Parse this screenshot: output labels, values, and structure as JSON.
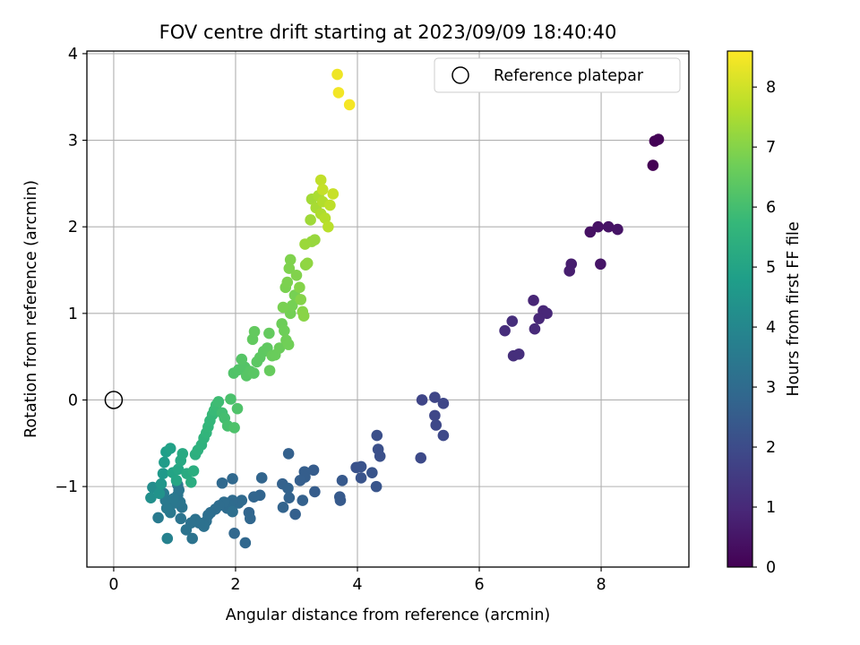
{
  "chart_data": {
    "type": "scatter",
    "title": "FOV centre drift starting at 2023/09/09 18:40:40",
    "xlabel": "Angular distance from reference (arcmin)",
    "ylabel": "Rotation from reference (arcmin)",
    "xlim": [
      -0.44,
      9.44
    ],
    "ylim": [
      -1.93,
      4.03
    ],
    "xticks": [
      0,
      2,
      4,
      6,
      8
    ],
    "yticks": [
      -1,
      0,
      1,
      2,
      3,
      4
    ],
    "grid": true,
    "legend": {
      "placement": "top-right",
      "entries": [
        "Reference platepar"
      ]
    },
    "reference_point": {
      "label": "Reference platepar",
      "x": 0,
      "y": 0
    },
    "colorbar": {
      "label": "Hours from first FF file",
      "min": 0,
      "max": 8.6,
      "ticks": [
        0,
        1,
        2,
        3,
        4,
        5,
        6,
        7,
        8
      ],
      "colormap": "viridis",
      "stops": [
        "#440154",
        "#482878",
        "#3e4989",
        "#31688e",
        "#26828e",
        "#1f9e89",
        "#35b779",
        "#6ece58",
        "#b5de2b",
        "#fde725"
      ]
    },
    "points": [
      [
        8.85,
        2.71,
        0.0
      ],
      [
        8.88,
        2.99,
        0.03
      ],
      [
        8.94,
        3.01,
        0.05
      ],
      [
        7.82,
        1.94,
        0.4
      ],
      [
        7.95,
        2.0,
        0.42
      ],
      [
        8.12,
        2.0,
        0.45
      ],
      [
        8.27,
        1.97,
        0.47
      ],
      [
        7.99,
        1.57,
        0.5
      ],
      [
        7.51,
        1.57,
        0.7
      ],
      [
        7.48,
        1.49,
        0.72
      ],
      [
        6.89,
        1.15,
        0.9
      ],
      [
        7.05,
        1.03,
        0.92
      ],
      [
        7.11,
        1.0,
        0.95
      ],
      [
        6.98,
        0.94,
        0.97
      ],
      [
        6.91,
        0.82,
        1.0
      ],
      [
        6.42,
        0.8,
        1.1
      ],
      [
        6.54,
        0.91,
        1.12
      ],
      [
        6.56,
        0.51,
        1.15
      ],
      [
        6.65,
        0.53,
        1.17
      ],
      [
        5.06,
        0.0,
        1.8
      ],
      [
        5.27,
        0.03,
        1.82
      ],
      [
        5.41,
        -0.04,
        1.84
      ],
      [
        5.27,
        -0.18,
        1.86
      ],
      [
        5.29,
        -0.29,
        1.88
      ],
      [
        5.41,
        -0.41,
        1.9
      ],
      [
        5.04,
        -0.67,
        1.95
      ],
      [
        4.32,
        -0.41,
        2.1
      ],
      [
        4.34,
        -0.57,
        2.12
      ],
      [
        4.37,
        -0.65,
        2.14
      ],
      [
        3.98,
        -0.78,
        2.2
      ],
      [
        4.06,
        -0.77,
        2.22
      ],
      [
        4.06,
        -0.9,
        2.24
      ],
      [
        4.24,
        -0.84,
        2.26
      ],
      [
        4.31,
        -1.0,
        2.28
      ],
      [
        3.75,
        -0.93,
        2.4
      ],
      [
        3.71,
        -1.12,
        2.42
      ],
      [
        3.72,
        -1.16,
        2.44
      ],
      [
        3.28,
        -0.81,
        2.5
      ],
      [
        3.3,
        -1.06,
        2.52
      ],
      [
        3.13,
        -0.83,
        2.55
      ],
      [
        3.14,
        -0.89,
        2.57
      ],
      [
        3.06,
        -0.93,
        2.6
      ],
      [
        2.98,
        -1.32,
        2.62
      ],
      [
        3.1,
        -1.16,
        2.64
      ],
      [
        2.87,
        -0.62,
        2.66
      ],
      [
        2.77,
        -0.97,
        2.68
      ],
      [
        2.86,
        -1.02,
        2.7
      ],
      [
        2.88,
        -1.13,
        2.72
      ],
      [
        2.78,
        -1.24,
        2.74
      ],
      [
        2.43,
        -0.9,
        2.76
      ],
      [
        2.4,
        -1.1,
        2.78
      ],
      [
        2.3,
        -1.12,
        2.8
      ],
      [
        2.22,
        -1.3,
        2.82
      ],
      [
        2.24,
        -1.37,
        2.84
      ],
      [
        2.16,
        -1.65,
        2.86
      ],
      [
        1.98,
        -1.54,
        2.88
      ],
      [
        1.95,
        -0.91,
        2.9
      ],
      [
        1.78,
        -0.96,
        2.92
      ],
      [
        2.1,
        -1.16,
        2.94
      ],
      [
        2.05,
        -1.19,
        2.96
      ],
      [
        1.95,
        -1.16,
        2.98
      ],
      [
        1.9,
        -1.22,
        3.0
      ],
      [
        1.86,
        -1.25,
        3.02
      ],
      [
        1.81,
        -1.18,
        3.04
      ],
      [
        1.73,
        -1.22,
        3.06
      ],
      [
        1.67,
        -1.26,
        3.08
      ],
      [
        1.59,
        -1.3,
        3.1
      ],
      [
        1.55,
        -1.33,
        3.12
      ],
      [
        1.95,
        -1.29,
        3.14
      ],
      [
        1.52,
        -1.4,
        3.16
      ],
      [
        1.48,
        -1.46,
        3.18
      ],
      [
        1.4,
        -1.42,
        3.2
      ],
      [
        1.34,
        -1.38,
        3.22
      ],
      [
        1.27,
        -1.42,
        3.24
      ],
      [
        1.29,
        -1.6,
        3.26
      ],
      [
        1.19,
        -1.5,
        3.28
      ],
      [
        1.1,
        -1.37,
        3.3
      ],
      [
        1.12,
        -1.24,
        3.32
      ],
      [
        1.09,
        -1.18,
        3.34
      ],
      [
        1.05,
        -1.1,
        3.36
      ],
      [
        1.07,
        -1.04,
        3.38
      ],
      [
        1.05,
        -0.98,
        3.4
      ],
      [
        1.0,
        -1.19,
        3.42
      ],
      [
        0.98,
        -1.14,
        3.44
      ],
      [
        0.93,
        -1.3,
        3.46
      ],
      [
        0.87,
        -1.25,
        3.48
      ],
      [
        0.85,
        -1.16,
        3.5
      ],
      [
        0.82,
        -1.08,
        3.52
      ],
      [
        0.73,
        -1.36,
        3.54
      ],
      [
        0.88,
        -1.6,
        3.8
      ],
      [
        0.64,
        -1.01,
        4.2
      ],
      [
        0.61,
        -1.13,
        4.3
      ],
      [
        0.75,
        -1.08,
        4.4
      ],
      [
        0.78,
        -0.97,
        4.5
      ],
      [
        0.81,
        -0.85,
        4.6
      ],
      [
        0.83,
        -0.72,
        4.7
      ],
      [
        0.86,
        -0.6,
        4.8
      ],
      [
        0.93,
        -0.56,
        4.9
      ],
      [
        0.97,
        -0.84,
        5.0
      ],
      [
        1.03,
        -0.93,
        5.05
      ],
      [
        1.06,
        -0.8,
        5.1
      ],
      [
        1.1,
        -0.7,
        5.15
      ],
      [
        1.13,
        -0.62,
        5.2
      ],
      [
        1.2,
        -0.85,
        5.25
      ],
      [
        1.27,
        -0.95,
        5.3
      ],
      [
        1.31,
        -0.82,
        5.35
      ],
      [
        1.34,
        -0.63,
        5.4
      ],
      [
        1.38,
        -0.58,
        5.45
      ],
      [
        1.44,
        -0.52,
        5.5
      ],
      [
        1.48,
        -0.44,
        5.55
      ],
      [
        1.52,
        -0.38,
        5.6
      ],
      [
        1.55,
        -0.31,
        5.65
      ],
      [
        1.58,
        -0.24,
        5.7
      ],
      [
        1.62,
        -0.17,
        5.75
      ],
      [
        1.65,
        -0.12,
        5.8
      ],
      [
        1.68,
        -0.06,
        5.85
      ],
      [
        1.72,
        -0.02,
        5.9
      ],
      [
        1.78,
        -0.15,
        5.95
      ],
      [
        1.82,
        -0.21,
        6.0
      ],
      [
        1.87,
        -0.3,
        6.05
      ],
      [
        1.92,
        0.01,
        6.1
      ],
      [
        1.98,
        -0.32,
        6.15
      ],
      [
        2.03,
        -0.1,
        6.18
      ],
      [
        1.97,
        0.31,
        6.2
      ],
      [
        2.05,
        0.35,
        6.22
      ],
      [
        2.15,
        0.38,
        6.25
      ],
      [
        2.1,
        0.47,
        6.28
      ],
      [
        2.18,
        0.28,
        6.3
      ],
      [
        2.24,
        0.33,
        6.32
      ],
      [
        2.3,
        0.31,
        6.35
      ],
      [
        2.35,
        0.44,
        6.38
      ],
      [
        2.4,
        0.49,
        6.4
      ],
      [
        2.46,
        0.56,
        6.42
      ],
      [
        2.52,
        0.6,
        6.45
      ],
      [
        2.28,
        0.7,
        6.48
      ],
      [
        2.31,
        0.79,
        6.5
      ],
      [
        2.55,
        0.77,
        6.52
      ],
      [
        2.56,
        0.34,
        6.55
      ],
      [
        2.6,
        0.51,
        6.58
      ],
      [
        2.65,
        0.52,
        6.6
      ],
      [
        2.72,
        0.6,
        6.62
      ],
      [
        2.76,
        0.88,
        6.65
      ],
      [
        2.8,
        0.8,
        6.68
      ],
      [
        2.83,
        0.69,
        6.7
      ],
      [
        2.87,
        0.64,
        6.72
      ],
      [
        2.9,
        1.0,
        6.75
      ],
      [
        2.93,
        1.09,
        6.78
      ],
      [
        2.97,
        1.21,
        6.8
      ],
      [
        2.78,
        1.07,
        6.82
      ],
      [
        2.82,
        1.3,
        6.85
      ],
      [
        2.85,
        1.36,
        6.88
      ],
      [
        2.88,
        1.52,
        6.9
      ],
      [
        2.9,
        1.62,
        6.92
      ],
      [
        3.0,
        1.44,
        6.95
      ],
      [
        3.05,
        1.3,
        6.98
      ],
      [
        3.07,
        1.16,
        7.0
      ],
      [
        3.1,
        1.02,
        7.02
      ],
      [
        3.12,
        0.97,
        7.05
      ],
      [
        3.15,
        1.56,
        7.1
      ],
      [
        3.18,
        1.58,
        7.15
      ],
      [
        3.25,
        1.83,
        7.2
      ],
      [
        3.3,
        1.85,
        7.25
      ],
      [
        3.14,
        1.8,
        7.3
      ],
      [
        3.23,
        2.08,
        7.35
      ],
      [
        3.25,
        2.32,
        7.4
      ],
      [
        3.32,
        2.22,
        7.45
      ],
      [
        3.36,
        2.36,
        7.5
      ],
      [
        3.4,
        2.15,
        7.55
      ],
      [
        3.43,
        2.29,
        7.6
      ],
      [
        3.47,
        2.1,
        7.65
      ],
      [
        3.52,
        2.0,
        7.7
      ],
      [
        3.55,
        2.25,
        7.75
      ],
      [
        3.4,
        2.54,
        7.8
      ],
      [
        3.43,
        2.43,
        7.85
      ],
      [
        3.6,
        2.38,
        7.9
      ],
      [
        3.67,
        3.76,
        8.4
      ],
      [
        3.69,
        3.55,
        8.45
      ],
      [
        3.87,
        3.41,
        8.5
      ]
    ]
  }
}
